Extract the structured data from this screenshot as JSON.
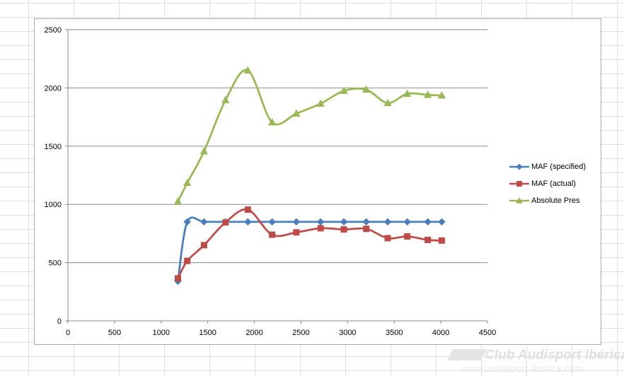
{
  "chart_data": {
    "type": "scatter",
    "title": "",
    "xlabel": "",
    "ylabel": "",
    "xlim": [
      0,
      4500
    ],
    "ylim": [
      0,
      2500
    ],
    "x_ticks": [
      0,
      500,
      1000,
      1500,
      2000,
      2500,
      3000,
      3500,
      4000,
      4500
    ],
    "y_ticks": [
      0,
      500,
      1000,
      1500,
      2000,
      2500
    ],
    "grid": "horizontal major gridlines",
    "smoothed_lines": true,
    "legend_position": "right",
    "series": [
      {
        "name": "MAF (specified)",
        "color": "#4a7ebb",
        "marker": "diamond",
        "points": [
          [
            1180,
            340
          ],
          [
            1280,
            850
          ],
          [
            1460,
            850
          ],
          [
            1690,
            850
          ],
          [
            1930,
            850
          ],
          [
            2190,
            850
          ],
          [
            2450,
            850
          ],
          [
            2710,
            850
          ],
          [
            2960,
            850
          ],
          [
            3200,
            850
          ],
          [
            3430,
            850
          ],
          [
            3640,
            850
          ],
          [
            3860,
            850
          ],
          [
            4010,
            850
          ]
        ]
      },
      {
        "name": "MAF (actual)",
        "color": "#be4b48",
        "marker": "square",
        "points": [
          [
            1180,
            365
          ],
          [
            1280,
            515
          ],
          [
            1460,
            650
          ],
          [
            1690,
            845
          ],
          [
            1930,
            955
          ],
          [
            2190,
            740
          ],
          [
            2450,
            760
          ],
          [
            2710,
            795
          ],
          [
            2960,
            785
          ],
          [
            3200,
            790
          ],
          [
            3430,
            710
          ],
          [
            3640,
            725
          ],
          [
            3860,
            695
          ],
          [
            4010,
            690
          ]
        ]
      },
      {
        "name": "Absolute Pres",
        "color": "#98b954",
        "marker": "triangle",
        "points": [
          [
            1180,
            1025
          ],
          [
            1280,
            1185
          ],
          [
            1460,
            1455
          ],
          [
            1690,
            1895
          ],
          [
            1930,
            2150
          ],
          [
            2190,
            1705
          ],
          [
            2450,
            1780
          ],
          [
            2710,
            1865
          ],
          [
            2960,
            1975
          ],
          [
            3200,
            1985
          ],
          [
            3430,
            1870
          ],
          [
            3640,
            1950
          ],
          [
            3860,
            1940
          ],
          [
            4010,
            1935
          ]
        ]
      }
    ]
  },
  "watermark": {
    "title": "Club Audisport Ibérica",
    "url": "www.audisport-iberica.com"
  }
}
